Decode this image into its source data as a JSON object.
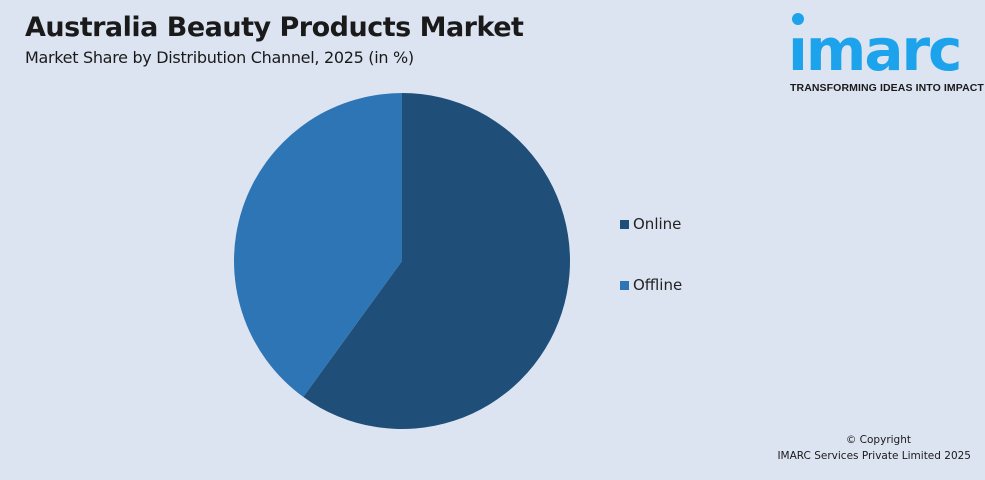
{
  "header": {
    "title": "Australia Beauty Products Market",
    "subtitle": "Market Share by Distribution Channel, 2025 (in %)"
  },
  "logo": {
    "text": "imarc",
    "tagline": "TRANSFORMING IDEAS INTO IMPACT",
    "color": "#1ca3ec"
  },
  "chart_data": {
    "type": "pie",
    "title": "Australia Beauty Products Market",
    "subtitle": "Market Share by Distribution Channel, 2025 (in %)",
    "categories": [
      "Online",
      "Offline"
    ],
    "values": [
      60,
      40
    ],
    "colors": [
      "#1f4e79",
      "#2e75b6"
    ],
    "start_angle": "12 o'clock, clockwise",
    "legend_position": "right"
  },
  "footer": {
    "copyright": "© Copyright",
    "company": "IMARC Services Private Limited 2025"
  }
}
